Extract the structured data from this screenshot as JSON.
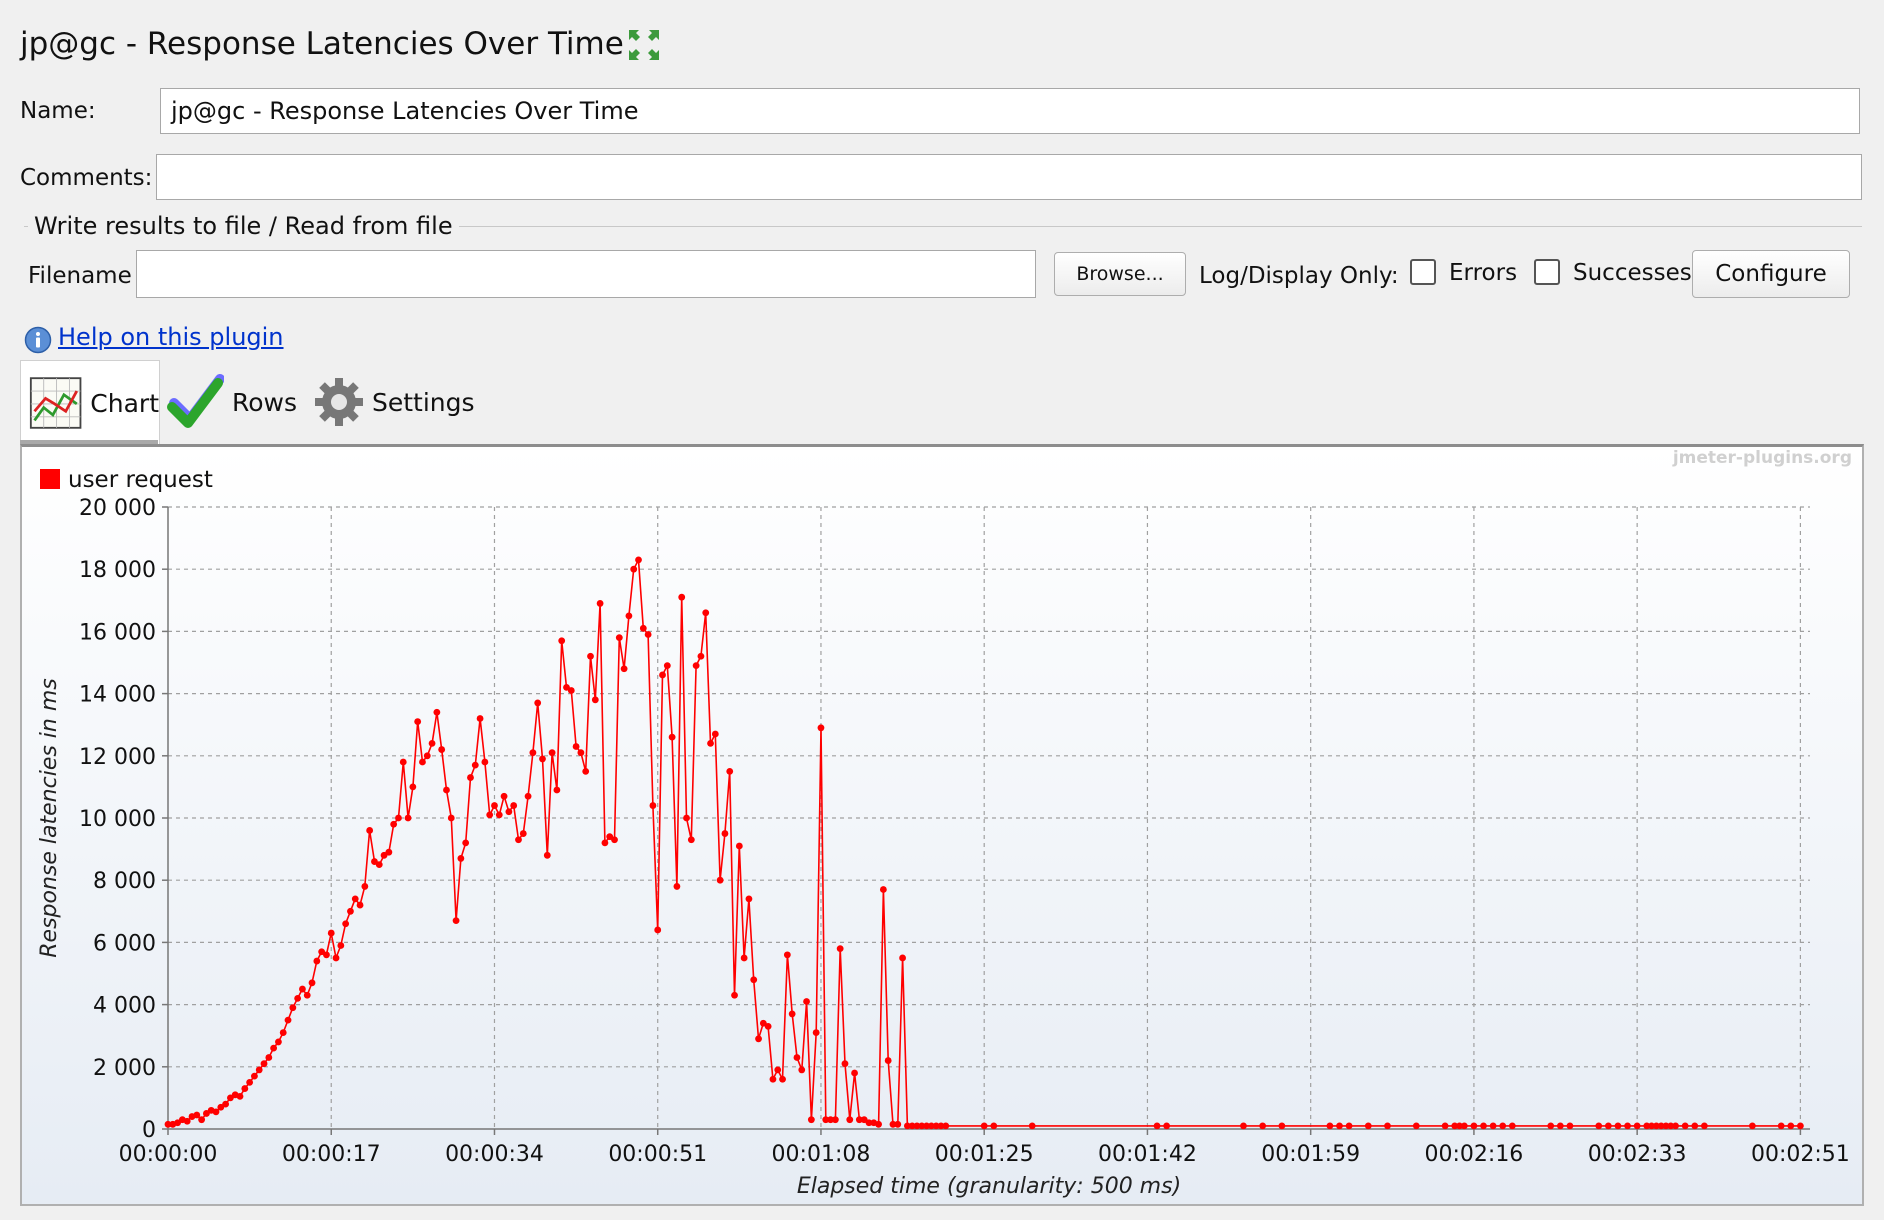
{
  "window": {
    "title": "jp@gc - Response Latencies Over Time",
    "expand_icon": "expand-arrows-icon"
  },
  "form": {
    "name_label": "Name:",
    "name_value": "jp@gc - Response Latencies Over Time",
    "comments_label": "Comments:",
    "comments_value": "",
    "group_title": "Write results to file / Read from file",
    "filename_label": "Filename",
    "filename_value": "",
    "browse_label": "Browse...",
    "log_display_label": "Log/Display Only:",
    "errors_label": "Errors",
    "errors_checked": false,
    "successes_label": "Successes",
    "successes_checked": false,
    "configure_label": "Configure"
  },
  "help": {
    "icon": "info-icon",
    "link_text": "Help on this plugin"
  },
  "tabs": [
    {
      "label": "Chart",
      "icon": "chart-icon",
      "selected": true
    },
    {
      "label": "Rows",
      "icon": "checkmark-icon",
      "selected": false
    },
    {
      "label": "Settings",
      "icon": "gear-icon",
      "selected": false
    }
  ],
  "colors": {
    "series": "#ff0000",
    "grid": "#a0a0a0",
    "plot_bg_top": "#ffffff",
    "plot_bg_bottom": "#e6ecf4"
  },
  "chart_data": {
    "type": "line",
    "watermark": "jmeter-plugins.org",
    "legend_position": "top-left",
    "grid": true,
    "xlabel": "Elapsed time (granularity: 500 ms)",
    "ylabel": "Response latencies in ms",
    "xlim": [
      0,
      171
    ],
    "ylim": [
      0,
      20000
    ],
    "x_ticks": [
      0,
      17,
      34,
      51,
      68,
      85,
      102,
      119,
      136,
      153,
      170
    ],
    "x_tick_labels": [
      "00:00:00",
      "00:00:17",
      "00:00:34",
      "00:00:51",
      "00:01:08",
      "00:01:25",
      "00:01:42",
      "00:01:59",
      "00:02:16",
      "00:02:33",
      "00:02:51"
    ],
    "y_ticks": [
      0,
      2000,
      4000,
      6000,
      8000,
      10000,
      12000,
      14000,
      16000,
      18000,
      20000
    ],
    "y_tick_labels": [
      "0",
      "2 000",
      "4 000",
      "6 000",
      "8 000",
      "10 000",
      "12 000",
      "14 000",
      "16 000",
      "18 000",
      "20 000"
    ],
    "series": [
      {
        "name": "user request",
        "color": "#ff0000",
        "x": [
          0,
          0.5,
          1,
          1.5,
          2,
          2.5,
          3,
          3.5,
          4,
          4.5,
          5,
          5.5,
          6,
          6.5,
          7,
          7.5,
          8,
          8.5,
          9,
          9.5,
          10,
          10.5,
          11,
          11.5,
          12,
          12.5,
          13,
          13.5,
          14,
          14.5,
          15,
          15.5,
          16,
          16.5,
          17,
          17.5,
          18,
          18.5,
          19,
          19.5,
          20,
          20.5,
          21,
          21.5,
          22,
          22.5,
          23,
          23.5,
          24,
          24.5,
          25,
          25.5,
          26,
          26.5,
          27,
          27.5,
          28,
          28.5,
          29,
          29.5,
          30,
          30.5,
          31,
          31.5,
          32,
          32.5,
          33,
          33.5,
          34,
          34.5,
          35,
          35.5,
          36,
          36.5,
          37,
          37.5,
          38,
          38.5,
          39,
          39.5,
          40,
          40.5,
          41,
          41.5,
          42,
          42.5,
          43,
          43.5,
          44,
          44.5,
          45,
          45.5,
          46,
          46.5,
          47,
          47.5,
          48,
          48.5,
          49,
          49.5,
          50,
          50.5,
          51,
          51.5,
          52,
          52.5,
          53,
          53.5,
          54,
          54.5,
          55,
          55.5,
          56,
          56.5,
          57,
          57.5,
          58,
          58.5,
          59,
          59.5,
          60,
          60.5,
          61,
          61.5,
          62,
          62.5,
          63,
          63.5,
          64,
          64.5,
          65,
          65.5,
          66,
          66.5,
          67,
          67.5,
          68,
          68.5,
          69,
          69.5,
          70,
          70.5,
          71,
          71.5,
          72,
          72.5,
          73,
          73.5,
          74,
          74.5,
          75,
          75.5,
          76,
          76.5,
          77,
          77.5,
          78,
          78.5,
          79,
          79.5,
          80,
          80.5,
          81,
          85,
          86,
          90,
          103,
          104,
          112,
          114,
          116,
          121,
          122,
          123,
          125,
          127,
          130,
          133,
          134,
          134.5,
          135,
          136,
          137,
          138,
          139,
          140,
          144,
          145,
          146,
          149,
          150,
          151,
          152,
          153,
          154,
          154.5,
          155,
          155.5,
          156,
          156.5,
          157,
          158,
          159,
          160,
          165,
          168,
          169,
          170
        ],
        "y": [
          150,
          150,
          200,
          300,
          250,
          400,
          450,
          300,
          500,
          600,
          550,
          700,
          800,
          1000,
          1100,
          1050,
          1300,
          1500,
          1700,
          1900,
          2100,
          2300,
          2600,
          2800,
          3100,
          3500,
          3900,
          4200,
          4500,
          4300,
          4700,
          5400,
          5700,
          5600,
          6300,
          5500,
          5900,
          6600,
          7000,
          7400,
          7200,
          7800,
          9600,
          8600,
          8500,
          8800,
          8900,
          9800,
          10000,
          11800,
          10000,
          11000,
          13100,
          11800,
          12000,
          12400,
          13400,
          12200,
          10900,
          10000,
          6700,
          8700,
          9200,
          11300,
          11700,
          13200,
          11800,
          10100,
          10400,
          10100,
          10700,
          10200,
          10400,
          9300,
          9500,
          10700,
          12100,
          13700,
          11900,
          8800,
          12100,
          10900,
          15700,
          14200,
          14100,
          12300,
          12100,
          11500,
          15200,
          13800,
          16900,
          9200,
          9400,
          9300,
          15800,
          14800,
          16500,
          18000,
          18300,
          16100,
          15900,
          10400,
          6400,
          14600,
          14900,
          12600,
          7800,
          17100,
          10000,
          9300,
          14900,
          15200,
          16600,
          12400,
          12700,
          8000,
          9500,
          11500,
          4300,
          9100,
          5500,
          7400,
          4800,
          2900,
          3400,
          3300,
          1600,
          1900,
          1600,
          5600,
          3700,
          2300,
          1900,
          4100,
          300,
          3100,
          12900,
          300,
          300,
          300,
          5800,
          2100,
          300,
          1800,
          300,
          300,
          200,
          200,
          150,
          7700,
          2200,
          150,
          150,
          5500,
          100,
          100,
          100,
          100,
          100,
          100,
          100,
          100,
          100,
          100,
          100,
          100,
          100,
          100,
          100,
          100,
          100,
          100,
          100,
          100,
          100,
          100,
          100,
          100,
          100,
          100,
          100,
          100,
          100,
          100,
          100,
          100,
          100,
          100,
          100,
          100,
          100,
          100,
          100,
          100,
          100,
          100,
          100,
          100,
          100,
          100,
          100,
          100,
          100,
          100,
          100,
          100,
          100,
          100
        ]
      }
    ]
  }
}
